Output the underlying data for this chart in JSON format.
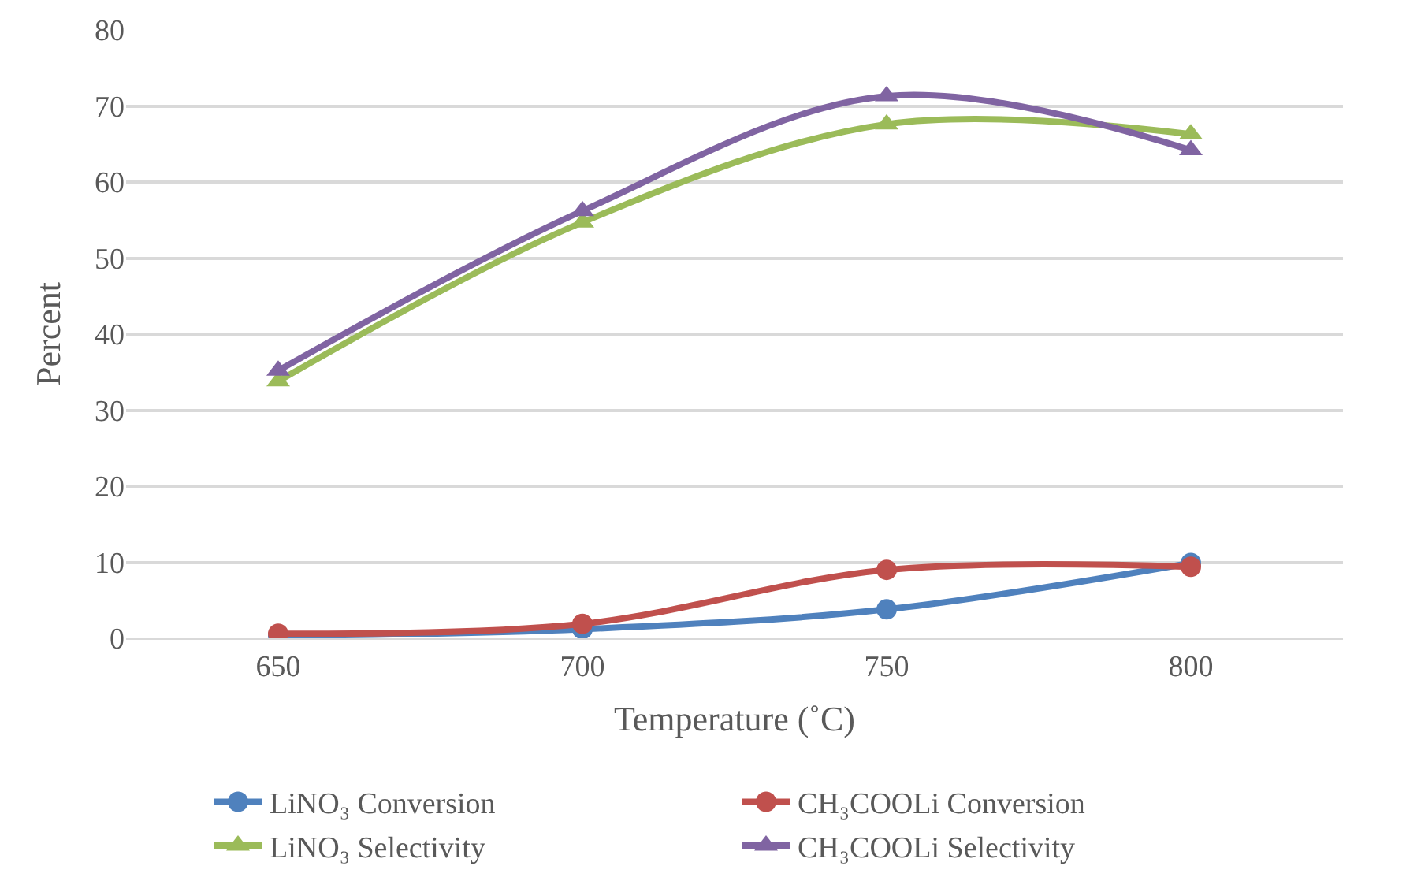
{
  "chart_data": {
    "type": "line",
    "xlabel": "Temperature (˚C)",
    "ylabel": "Percent",
    "categories": [
      "650",
      "700",
      "750",
      "800"
    ],
    "ylim": [
      0,
      80
    ],
    "yticks": [
      0,
      10,
      20,
      30,
      40,
      50,
      60,
      70,
      80
    ],
    "grid": "y",
    "legend": "bottom",
    "line_style": "solid",
    "series": [
      {
        "name": "LiNO₃ Conversion",
        "color": "#4f81bd",
        "marker": "circle",
        "values": [
          0.3,
          1.2,
          3.8,
          9.9
        ]
      },
      {
        "name": "CH₃COOLi Conversion",
        "color": "#c0504d",
        "marker": "circle",
        "values": [
          0.6,
          1.9,
          9.0,
          9.4
        ]
      },
      {
        "name": "LiNO₃ Selectivity",
        "color": "#9bbb59",
        "marker": "triangle",
        "values": [
          33.8,
          54.7,
          67.6,
          66.3
        ]
      },
      {
        "name": "CH₃COOLi Selectivity",
        "color": "#8064a2",
        "marker": "triangle",
        "values": [
          35.2,
          56.2,
          71.3,
          64.2
        ]
      }
    ]
  }
}
